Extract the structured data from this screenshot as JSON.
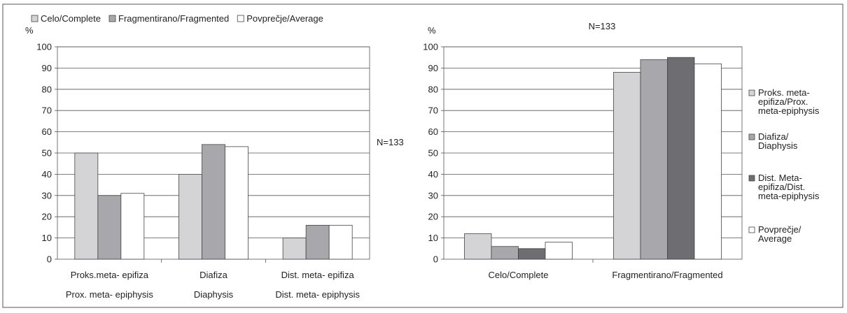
{
  "chart_data": [
    {
      "type": "bar",
      "title": "",
      "ylabel": "%",
      "ylim": [
        0,
        100
      ],
      "yticks": [
        "0",
        "10",
        "20",
        "30",
        "40",
        "50",
        "60",
        "70",
        "80",
        "90",
        "100"
      ],
      "categories": [
        "Proks.meta- epifiza",
        "Diafiza",
        "Dist. meta- epifiza"
      ],
      "categories_en": [
        "Prox. meta- epiphysis",
        "Diaphysis",
        "Dist. meta- epiphysis"
      ],
      "grid": true,
      "legend_position": "top",
      "series": [
        {
          "name": "Celo/Complete",
          "values": [
            50,
            40,
            10
          ],
          "color": "#d4d4d6"
        },
        {
          "name": "Fragmentirano/Fragmented",
          "values": [
            30,
            54,
            16
          ],
          "color": "#a8a8ac"
        },
        {
          "name": "Povprečje/Average",
          "values": [
            31,
            53,
            16
          ],
          "color": "#ffffff"
        }
      ],
      "annotation": "N=133"
    },
    {
      "type": "bar",
      "title": "N=133",
      "ylabel": "%",
      "ylim": [
        0,
        100
      ],
      "yticks": [
        "0",
        "10",
        "20",
        "30",
        "40",
        "50",
        "60",
        "70",
        "80",
        "90",
        "100"
      ],
      "categories": [
        "Celo/Complete",
        "Fragmentirano/Fragmented"
      ],
      "grid": true,
      "legend_position": "right",
      "series": [
        {
          "name": "Proks. meta- epifiza/Prox. meta-epiphysis",
          "legend_lines": [
            "Proks. meta-",
            "epifiza/Prox.",
            "meta-epiphysis"
          ],
          "values": [
            12,
            88
          ],
          "color": "#d4d4d6"
        },
        {
          "name": "Diafiza/ Diaphysis",
          "legend_lines": [
            "Diafiza/",
            "Diaphysis"
          ],
          "values": [
            6,
            94
          ],
          "color": "#a8a8ac"
        },
        {
          "name": "Dist. Meta- epifiza/Dist. meta-epiphysis",
          "legend_lines": [
            "Dist. Meta-",
            "epifiza/Dist.",
            "meta-epiphysis"
          ],
          "values": [
            5,
            95
          ],
          "color": "#6e6e72"
        },
        {
          "name": "Povprečje/ Average",
          "legend_lines": [
            "Povprečje/",
            "Average"
          ],
          "values": [
            8,
            92
          ],
          "color": "#ffffff"
        }
      ]
    }
  ]
}
